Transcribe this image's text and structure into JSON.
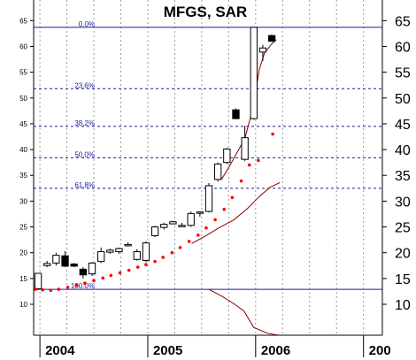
{
  "chart_data": {
    "type": "candlestick",
    "title": "MFGS, SAR",
    "y_ticks": [
      10,
      15,
      20,
      25,
      30,
      35,
      40,
      45,
      50,
      55,
      60,
      65
    ],
    "left_y_ticks": [
      10,
      15,
      20,
      25,
      30,
      35,
      40,
      45,
      50,
      55,
      60,
      65
    ],
    "ylim": [
      4,
      69
    ],
    "x_tick_labels": [
      {
        "label": "2004",
        "t": 0.2
      },
      {
        "label": "2005",
        "t": 12.2
      },
      {
        "label": "2006",
        "t": 24.2
      },
      {
        "label": "200",
        "t": 36.2
      }
    ],
    "xlim": [
      -0.5,
      38.3
    ],
    "grid": true,
    "colors": {
      "fib_line": "#1a1aa0",
      "sar_dot": "#ff0000",
      "average_line": "#8b0000",
      "candle_up_fill": "#ffffff",
      "candle_down_fill": "#000000"
    },
    "fibonacci": [
      {
        "label": "0.0%",
        "value": 63.7,
        "style": "solid"
      },
      {
        "label": "23.6%",
        "value": 51.8,
        "style": "dashed"
      },
      {
        "label": "38.2%",
        "value": 44.5,
        "style": "dashed"
      },
      {
        "label": "50.0%",
        "value": 38.4,
        "style": "dashed"
      },
      {
        "label": "61.8%",
        "value": 32.5,
        "style": "dashed"
      },
      {
        "label": "100.0%",
        "value": 12.9,
        "style": "solid"
      }
    ],
    "candles": [
      {
        "t": 0,
        "open": 13.0,
        "high": 16.0,
        "low": 12.8,
        "close": 16.0
      },
      {
        "t": 1,
        "open": 17.5,
        "high": 18.4,
        "low": 17.2,
        "close": 17.9
      },
      {
        "t": 2,
        "open": 18.0,
        "high": 20.0,
        "low": 17.5,
        "close": 19.5
      },
      {
        "t": 3,
        "open": 19.4,
        "high": 20.3,
        "low": 17.2,
        "close": 17.4
      },
      {
        "t": 4,
        "open": 17.8,
        "high": 18.0,
        "low": 17.2,
        "close": 17.4
      },
      {
        "t": 5,
        "open": 16.8,
        "high": 17.2,
        "low": 15.0,
        "close": 15.7
      },
      {
        "t": 6,
        "open": 15.9,
        "high": 18.2,
        "low": 15.5,
        "close": 18.0
      },
      {
        "t": 7,
        "open": 18.3,
        "high": 21.0,
        "low": 18.0,
        "close": 20.2
      },
      {
        "t": 8,
        "open": 20.1,
        "high": 20.8,
        "low": 19.8,
        "close": 20.5
      },
      {
        "t": 9,
        "open": 20.2,
        "high": 21.0,
        "low": 19.8,
        "close": 20.8
      },
      {
        "t": 10,
        "open": 21.6,
        "high": 22.0,
        "low": 21.2,
        "close": 21.6
      },
      {
        "t": 11,
        "open": 18.7,
        "high": 20.7,
        "low": 18.5,
        "close": 20.2
      },
      {
        "t": 12,
        "open": 18.5,
        "high": 22.2,
        "low": 18.2,
        "close": 21.9
      },
      {
        "t": 13,
        "open": 23.3,
        "high": 25.2,
        "low": 23.0,
        "close": 25.0
      },
      {
        "t": 14,
        "open": 24.9,
        "high": 25.8,
        "low": 24.5,
        "close": 25.5
      },
      {
        "t": 15,
        "open": 25.6,
        "high": 26.2,
        "low": 25.5,
        "close": 26.0
      },
      {
        "t": 16,
        "open": 25.2,
        "high": 25.8,
        "low": 25.0,
        "close": 25.3
      },
      {
        "t": 17,
        "open": 25.3,
        "high": 28.0,
        "low": 25.0,
        "close": 27.6
      },
      {
        "t": 18,
        "open": 27.7,
        "high": 28.0,
        "low": 27.0,
        "close": 27.9
      },
      {
        "t": 19,
        "open": 28.0,
        "high": 33.5,
        "low": 27.8,
        "close": 33.0
      },
      {
        "t": 20,
        "open": 34.2,
        "high": 37.5,
        "low": 33.8,
        "close": 37.2
      },
      {
        "t": 21,
        "open": 37.5,
        "high": 40.3,
        "low": 37.2,
        "close": 40.1
      },
      {
        "t": 22,
        "open": 47.7,
        "high": 48.0,
        "low": 45.9,
        "close": 46.0
      },
      {
        "t": 23,
        "open": 38.1,
        "high": 44.6,
        "low": 37.8,
        "close": 42.3
      },
      {
        "t": 24,
        "open": 46.0,
        "high": 63.7,
        "low": 45.8,
        "close": 63.7
      },
      {
        "t": 25,
        "open": 58.9,
        "high": 60.3,
        "low": 57.2,
        "close": 59.7
      },
      {
        "t": 26,
        "open": 62.1,
        "high": 62.3,
        "low": 60.9,
        "close": 61.0
      }
    ],
    "sar_points": [
      {
        "t": -0.3,
        "v": 12.9
      },
      {
        "t": 0.5,
        "v": 12.8
      },
      {
        "t": 1.4,
        "v": 12.7
      },
      {
        "t": 2.3,
        "v": 12.9
      },
      {
        "t": 3.3,
        "v": 13.3
      },
      {
        "t": 4.3,
        "v": 13.7
      },
      {
        "t": 5.2,
        "v": 14.1
      },
      {
        "t": 6.2,
        "v": 14.6
      },
      {
        "t": 7.2,
        "v": 15.1
      },
      {
        "t": 8.1,
        "v": 15.6
      },
      {
        "t": 9.1,
        "v": 16.1
      },
      {
        "t": 10.1,
        "v": 16.6
      },
      {
        "t": 11.1,
        "v": 17.2
      },
      {
        "t": 12.0,
        "v": 17.7
      },
      {
        "t": 13.0,
        "v": 18.3
      },
      {
        "t": 13.9,
        "v": 19.1
      },
      {
        "t": 14.9,
        "v": 20.0
      },
      {
        "t": 15.8,
        "v": 21.0
      },
      {
        "t": 16.8,
        "v": 22.2
      },
      {
        "t": 17.8,
        "v": 23.4
      },
      {
        "t": 18.7,
        "v": 24.8
      },
      {
        "t": 19.7,
        "v": 26.4
      },
      {
        "t": 20.7,
        "v": 28.4
      },
      {
        "t": 21.6,
        "v": 30.7
      },
      {
        "t": 22.6,
        "v": 33.9
      },
      {
        "t": 23.5,
        "v": 37.0
      },
      {
        "t": 24.5,
        "v": 37.9
      },
      {
        "t": 26.1,
        "v": 43.0
      }
    ],
    "average_line": [
      {
        "t": 17.1,
        "v": 21.8
      },
      {
        "t": 18.5,
        "v": 23.1
      },
      {
        "t": 20.1,
        "v": 24.8
      },
      {
        "t": 21.8,
        "v": 26.4
      },
      {
        "t": 23.3,
        "v": 28.6
      },
      {
        "t": 24.6,
        "v": 30.9
      },
      {
        "t": 25.8,
        "v": 32.7
      },
      {
        "t": 26.9,
        "v": 33.6
      }
    ],
    "average_line_upper": [
      {
        "t": 20.4,
        "v": 34.2
      },
      {
        "t": 21.1,
        "v": 36.2
      },
      {
        "t": 22.0,
        "v": 39.0
      },
      {
        "t": 23.0,
        "v": 42.1
      },
      {
        "t": 23.9,
        "v": 48.0
      },
      {
        "t": 24.6,
        "v": 55.5
      },
      {
        "t": 25.2,
        "v": 58.8
      },
      {
        "t": 26.0,
        "v": 60.5
      },
      {
        "t": 26.5,
        "v": 61.3
      }
    ],
    "average_line_lower": [
      {
        "t": 19.0,
        "v": 12.9
      },
      {
        "t": 20.4,
        "v": 11.6
      },
      {
        "t": 21.8,
        "v": 10.1
      },
      {
        "t": 22.9,
        "v": 8.7
      },
      {
        "t": 24.0,
        "v": 5.5
      },
      {
        "t": 25.5,
        "v": 4.4
      },
      {
        "t": 26.7,
        "v": 4.0
      }
    ]
  }
}
